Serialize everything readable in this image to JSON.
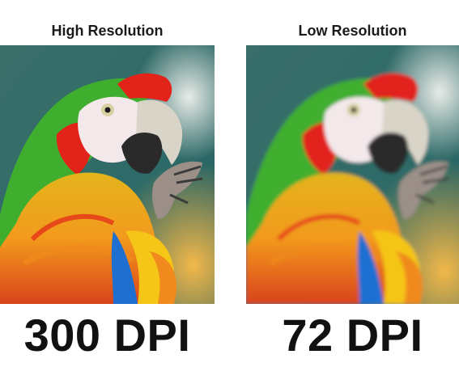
{
  "panels": [
    {
      "heading": "High Resolution",
      "label": "300 DPI",
      "quality": "sharp"
    },
    {
      "heading": "Low Resolution",
      "label": "72 DPI",
      "quality": "blurred"
    }
  ],
  "colors": {
    "background_teal": "#2f6b6a",
    "feather_green": "#3fae2e",
    "feather_red": "#e2231a",
    "feather_yellow": "#f5c518",
    "feather_orange": "#f08a1c",
    "feather_blue": "#1f6fd1",
    "face_white": "#f3e8ea",
    "beak_dark": "#2a2a2a",
    "beak_light": "#d9d4c8"
  }
}
